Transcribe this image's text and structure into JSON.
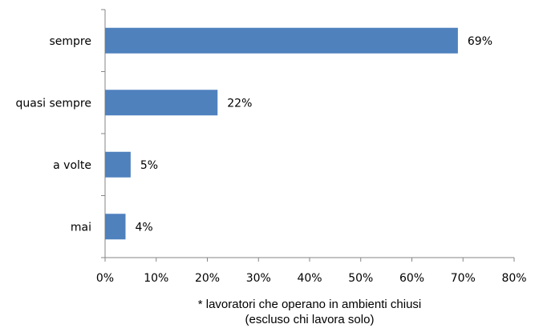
{
  "chart_data": {
    "type": "bar",
    "orientation": "horizontal",
    "categories": [
      "sempre",
      "quasi sempre",
      "a volte",
      "mai"
    ],
    "values": [
      69,
      22,
      5,
      4
    ],
    "value_labels": [
      "69%",
      "22%",
      "5%",
      "4%"
    ],
    "color": "#4f81bd",
    "xlim": [
      0,
      80
    ],
    "xticks": [
      {
        "value": 0,
        "label": "0%"
      },
      {
        "value": 10,
        "label": "10%"
      },
      {
        "value": 20,
        "label": "20%"
      },
      {
        "value": 30,
        "label": "30%"
      },
      {
        "value": 40,
        "label": "40%"
      },
      {
        "value": 50,
        "label": "50%"
      },
      {
        "value": 60,
        "label": "60%"
      },
      {
        "value": 70,
        "label": "70%"
      },
      {
        "value": 80,
        "label": "80%"
      }
    ],
    "grid": false,
    "xlabel": [
      "* lavoratori che operano in ambienti chiusi",
      "(escluso chi lavora solo)"
    ]
  }
}
